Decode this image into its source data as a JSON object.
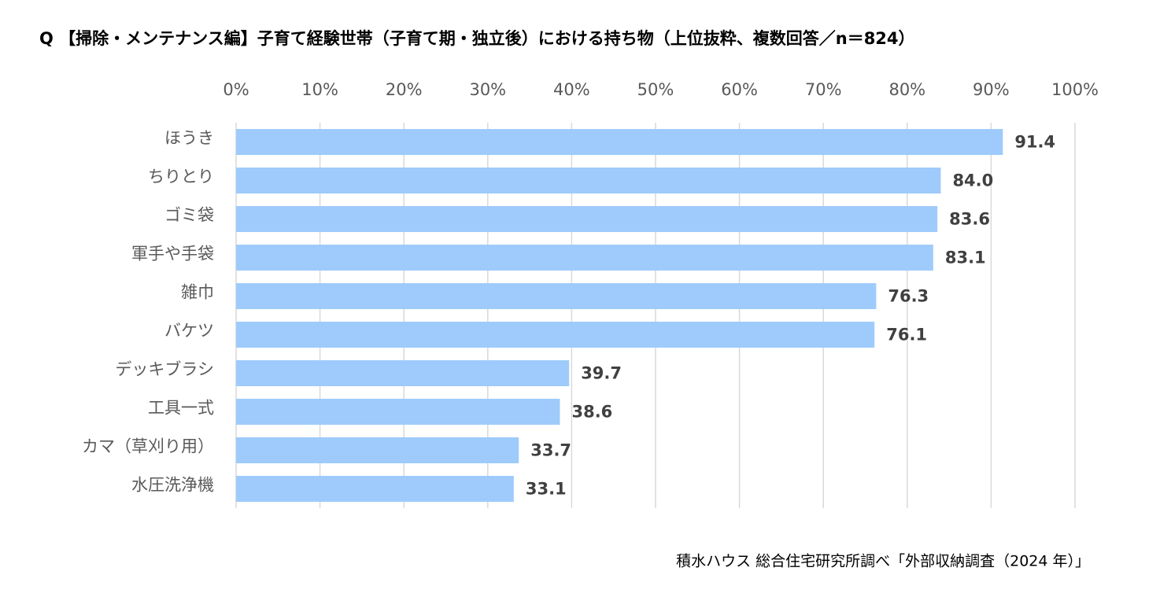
{
  "chart_data": {
    "type": "bar",
    "orientation": "horizontal",
    "title": "Q 【掃除・メンテナンス編】子育て経験世帯（子育て期・独立後）における持ち物（上位抜粋、複数回答／n＝824）",
    "categories": [
      "ほうき",
      "ちりとり",
      "ゴミ袋",
      "軍手や手袋",
      "雑巾",
      "バケツ",
      "デッキブラシ",
      "工具一式",
      "カマ（草刈り用）",
      "水圧洗浄機"
    ],
    "values": [
      91.4,
      84.0,
      83.6,
      83.1,
      76.3,
      76.1,
      39.7,
      38.6,
      33.7,
      33.1
    ],
    "value_labels": [
      "91.4",
      "84.0",
      "83.6",
      "83.1",
      "76.3",
      "76.1",
      "39.7",
      "38.6",
      "33.7",
      "33.1"
    ],
    "color": "#9ecbfb",
    "xlim": [
      0,
      100
    ],
    "xticks": [
      {
        "value": 0,
        "label": "0%"
      },
      {
        "value": 10,
        "label": "10%"
      },
      {
        "value": 20,
        "label": "20%"
      },
      {
        "value": 30,
        "label": "30%"
      },
      {
        "value": 40,
        "label": "40%"
      },
      {
        "value": 50,
        "label": "50%"
      },
      {
        "value": 60,
        "label": "60%"
      },
      {
        "value": 70,
        "label": "70%"
      },
      {
        "value": 80,
        "label": "80%"
      },
      {
        "value": 90,
        "label": "90%"
      },
      {
        "value": 100,
        "label": "100%"
      }
    ],
    "grid": true,
    "source": "積水ハウス 総合住宅研究所調べ「外部収納調査（2024 年）」"
  }
}
